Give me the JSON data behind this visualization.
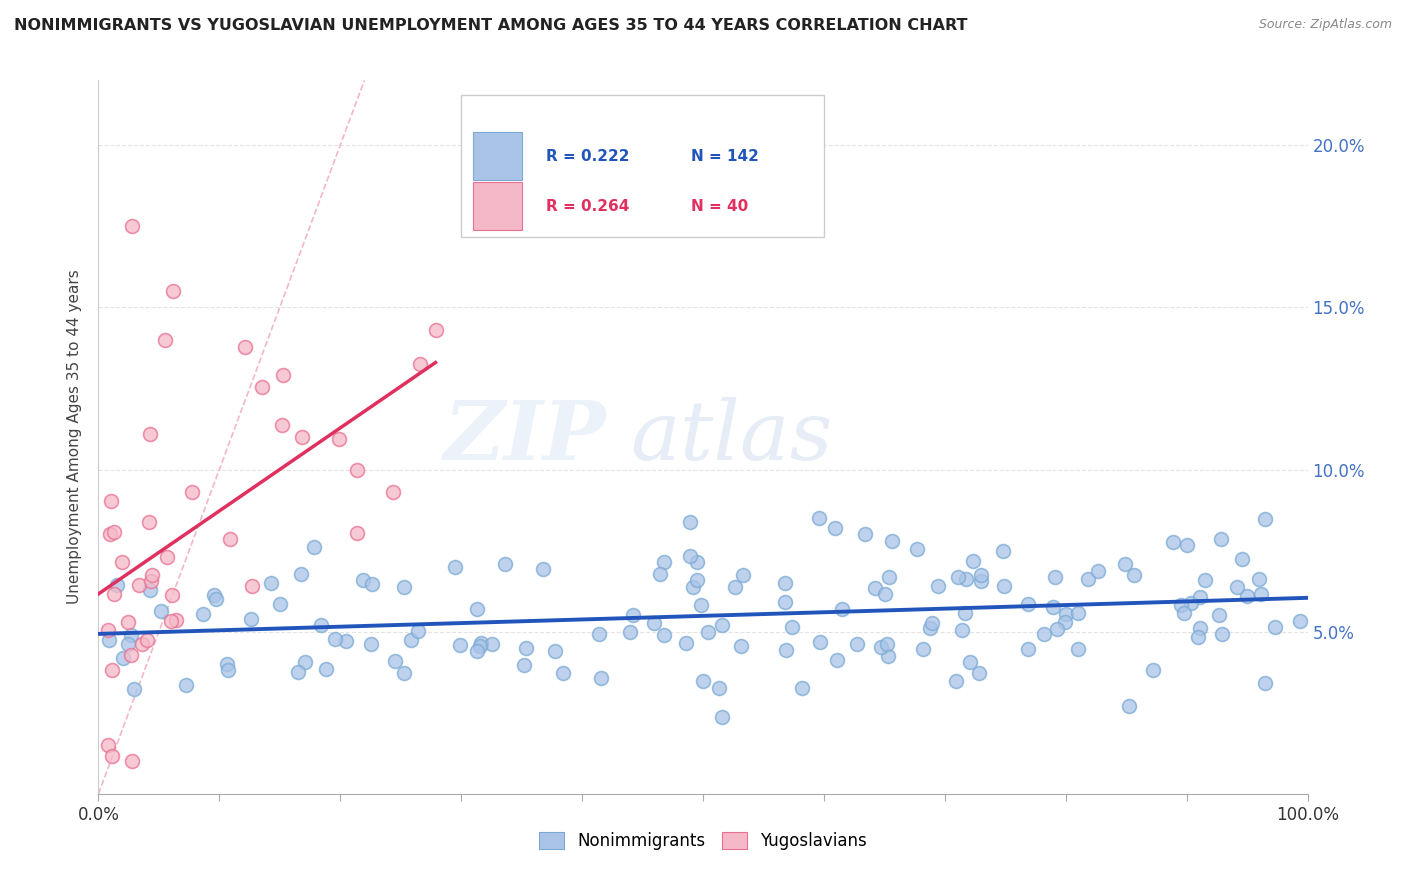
{
  "title": "NONIMMIGRANTS VS YUGOSLAVIAN UNEMPLOYMENT AMONG AGES 35 TO 44 YEARS CORRELATION CHART",
  "source": "Source: ZipAtlas.com",
  "ylabel": "Unemployment Among Ages 35 to 44 years",
  "xlim": [
    0.0,
    1.0
  ],
  "ylim": [
    0.0,
    0.22
  ],
  "nonimm_color": "#aac4e8",
  "nonimm_edge_color": "#7aaad4",
  "yugo_color": "#f5b8c8",
  "yugo_edge_color": "#e87090",
  "nonimm_line_color": "#2255bb",
  "yugo_line_color": "#e03060",
  "diagonal_color": "#f0b0c0",
  "legend_R_nonimm": "0.222",
  "legend_N_nonimm": "142",
  "legend_R_yugo": "0.264",
  "legend_N_yugo": "40",
  "background_color": "#ffffff",
  "grid_color": "#dddddd",
  "title_color": "#222222",
  "source_color": "#888888",
  "right_tick_color": "#4472c4",
  "ylabel_color": "#444444"
}
